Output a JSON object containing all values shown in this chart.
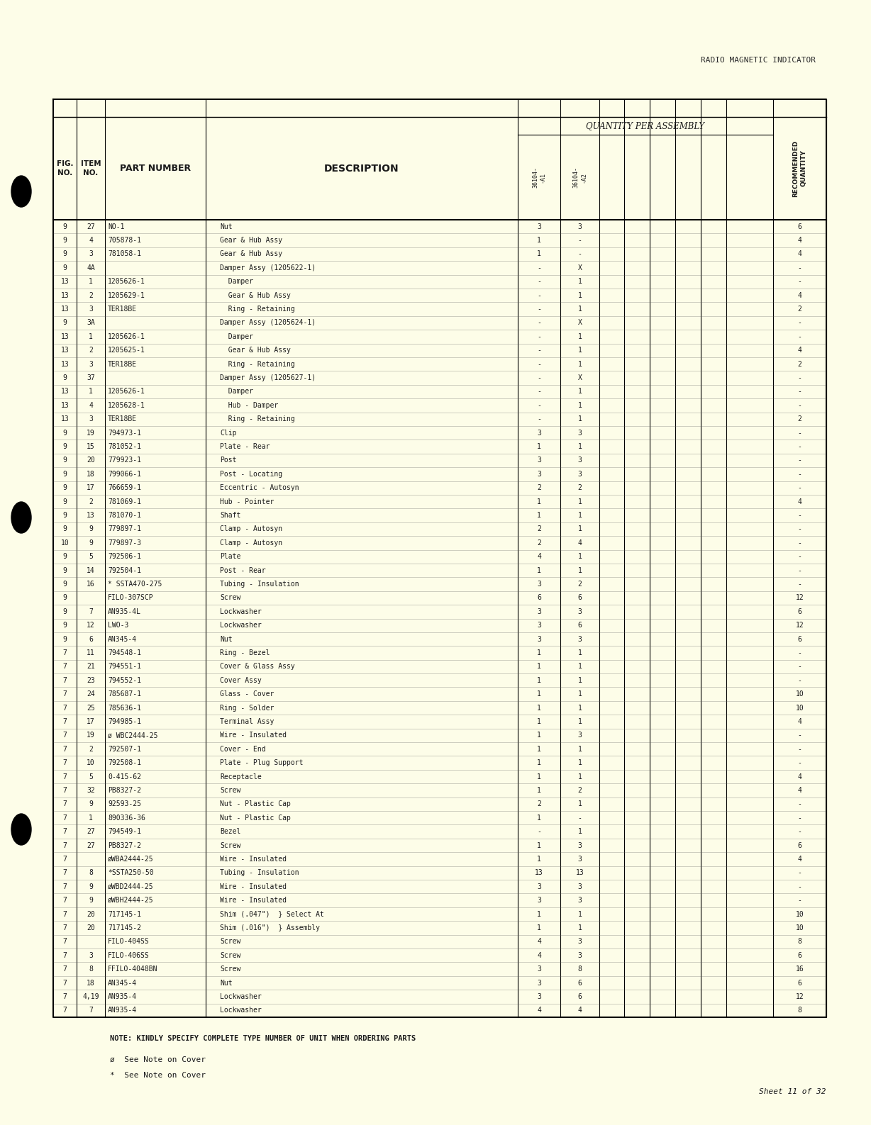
{
  "bg_color": "#fdfde8",
  "page_title": "RADIO MAGNETIC INDICATOR",
  "header_cols": [
    "FIG.\nNO.",
    "ITEM\nNO.",
    "PART NUMBER",
    "DESCRIPTION",
    "36104-\n  -A1",
    "36104-\n  -A2",
    "",
    "",
    "",
    "",
    "",
    "RECOMMENDED\nQUANTITY"
  ],
  "col_header_qty": "QUANTITY PER ASSEMBLY",
  "rows": [
    [
      "9",
      "27",
      "NO-1",
      "Nut",
      "3",
      "3",
      "",
      "",
      "",
      "",
      "",
      "6"
    ],
    [
      "9",
      "4",
      "705878-1",
      "Gear & Hub Assy",
      "1",
      "-",
      "",
      "",
      "",
      "",
      "",
      "4"
    ],
    [
      "9",
      "3",
      "781058-1",
      "Gear & Hub Assy",
      "1",
      "-",
      "",
      "",
      "",
      "",
      "",
      "4"
    ],
    [
      "9",
      "4A",
      "",
      "Damper Assy (1205622-1)",
      "-",
      "X",
      "",
      "",
      "",
      "",
      "",
      "-"
    ],
    [
      "13",
      "1",
      "1205626-1",
      "  Damper",
      "-",
      "1",
      "",
      "",
      "",
      "",
      "",
      "-"
    ],
    [
      "13",
      "2",
      "1205629-1",
      "  Gear & Hub Assy",
      "-",
      "1",
      "",
      "",
      "",
      "",
      "",
      "4"
    ],
    [
      "13",
      "3",
      "TER18BE",
      "  Ring - Retaining",
      "-",
      "1",
      "",
      "",
      "",
      "",
      "",
      "2"
    ],
    [
      "9",
      "3A",
      "",
      "Damper Assy (1205624-1)",
      "-",
      "X",
      "",
      "",
      "",
      "",
      "",
      "-"
    ],
    [
      "13",
      "1",
      "1205626-1",
      "  Damper",
      "-",
      "1",
      "",
      "",
      "",
      "",
      "",
      "-"
    ],
    [
      "13",
      "2",
      "1205625-1",
      "  Gear & Hub Assy",
      "-",
      "1",
      "",
      "",
      "",
      "",
      "",
      "4"
    ],
    [
      "13",
      "3",
      "TER18BE",
      "  Ring - Retaining",
      "-",
      "1",
      "",
      "",
      "",
      "",
      "",
      "2"
    ],
    [
      "9",
      "37",
      "",
      "Damper Assy (1205627-1)",
      "-",
      "X",
      "",
      "",
      "",
      "",
      "",
      "-"
    ],
    [
      "13",
      "1",
      "1205626-1",
      "  Damper",
      "-",
      "1",
      "",
      "",
      "",
      "",
      "",
      "-"
    ],
    [
      "13",
      "4",
      "1205628-1",
      "  Hub - Damper",
      "-",
      "1",
      "",
      "",
      "",
      "",
      "",
      "-"
    ],
    [
      "13",
      "3",
      "TER18BE",
      "  Ring - Retaining",
      "-",
      "1",
      "",
      "",
      "",
      "",
      "",
      "2"
    ],
    [
      "9",
      "19",
      "794973-1",
      "Clip",
      "3",
      "3",
      "",
      "",
      "",
      "",
      "",
      "-"
    ],
    [
      "9",
      "15",
      "781052-1",
      "Plate - Rear",
      "1",
      "1",
      "",
      "",
      "",
      "",
      "",
      "-"
    ],
    [
      "9",
      "20",
      "779923-1",
      "Post",
      "3",
      "3",
      "",
      "",
      "",
      "",
      "",
      "-"
    ],
    [
      "9",
      "18",
      "799066-1",
      "Post - Locating",
      "3",
      "3",
      "",
      "",
      "",
      "",
      "",
      "-"
    ],
    [
      "9",
      "17",
      "766659-1",
      "Eccentric - Autosyn",
      "2",
      "2",
      "",
      "",
      "",
      "",
      "",
      "-"
    ],
    [
      "9",
      "2",
      "781069-1",
      "Hub - Pointer",
      "1",
      "1",
      "",
      "",
      "",
      "",
      "",
      "4"
    ],
    [
      "9",
      "13",
      "781070-1",
      "Shaft",
      "1",
      "1",
      "",
      "",
      "",
      "",
      "",
      "-"
    ],
    [
      "9",
      "9",
      "779897-1",
      "Clamp - Autosyn",
      "2",
      "1",
      "",
      "",
      "",
      "",
      "",
      "-"
    ],
    [
      "10",
      "9",
      "779897-3",
      "Clamp - Autosyn",
      "2",
      "4",
      "",
      "",
      "",
      "",
      "",
      "-"
    ],
    [
      "9",
      "5",
      "792506-1",
      "Plate",
      "4",
      "1",
      "",
      "",
      "",
      "",
      "",
      "-"
    ],
    [
      "9",
      "14",
      "792504-1",
      "Post - Rear",
      "1",
      "1",
      "",
      "",
      "",
      "",
      "",
      "-"
    ],
    [
      "9",
      "16",
      "* SSTA470-275",
      "Tubing - Insulation",
      "3",
      "2",
      "",
      "",
      "",
      "",
      "",
      "-"
    ],
    [
      "9",
      "",
      "FILO-307SCP",
      "Screw",
      "6",
      "6",
      "",
      "",
      "",
      "",
      "",
      "12"
    ],
    [
      "9",
      "7",
      "AN935-4L",
      "Lockwasher",
      "3",
      "3",
      "",
      "",
      "",
      "",
      "",
      "6"
    ],
    [
      "9",
      "12",
      "LWO-3",
      "Lockwasher",
      "3",
      "6",
      "",
      "",
      "",
      "",
      "",
      "12"
    ],
    [
      "9",
      "6",
      "AN345-4",
      "Nut",
      "3",
      "3",
      "",
      "",
      "",
      "",
      "",
      "6"
    ],
    [
      "7",
      "11",
      "794548-1",
      "Ring - Bezel",
      "1",
      "1",
      "",
      "",
      "",
      "",
      "",
      "-"
    ],
    [
      "7",
      "21",
      "794551-1",
      "Cover & Glass Assy",
      "1",
      "1",
      "",
      "",
      "",
      "",
      "",
      "-"
    ],
    [
      "7",
      "23",
      "794552-1",
      "Cover Assy",
      "1",
      "1",
      "",
      "",
      "",
      "",
      "",
      "-"
    ],
    [
      "7",
      "24",
      "785687-1",
      "Glass - Cover",
      "1",
      "1",
      "",
      "",
      "",
      "",
      "",
      "10"
    ],
    [
      "7",
      "25",
      "785636-1",
      "Ring - Solder",
      "1",
      "1",
      "",
      "",
      "",
      "",
      "",
      "10"
    ],
    [
      "7",
      "17",
      "794985-1",
      "Terminal Assy",
      "1",
      "1",
      "",
      "",
      "",
      "",
      "",
      "4"
    ],
    [
      "7",
      "19",
      "ø WBC2444-25",
      "Wire - Insulated",
      "1",
      "3",
      "",
      "",
      "",
      "",
      "",
      "-"
    ],
    [
      "7",
      "2",
      "792507-1",
      "Cover - End",
      "1",
      "1",
      "",
      "",
      "",
      "",
      "",
      "-"
    ],
    [
      "7",
      "10",
      "792508-1",
      "Plate - Plug Support",
      "1",
      "1",
      "",
      "",
      "",
      "",
      "",
      "-"
    ],
    [
      "7",
      "5",
      "0-415-62",
      "Receptacle",
      "1",
      "1",
      "",
      "",
      "",
      "",
      "",
      "4"
    ],
    [
      "7",
      "32",
      "PB8327-2",
      "Screw",
      "1",
      "2",
      "",
      "",
      "",
      "",
      "",
      "4"
    ],
    [
      "7",
      "9",
      "92593-25",
      "Nut - Plastic Cap",
      "2",
      "1",
      "",
      "",
      "",
      "",
      "",
      "-"
    ],
    [
      "7",
      "1",
      "890336-36",
      "Nut - Plastic Cap",
      "1",
      "-",
      "",
      "",
      "",
      "",
      "",
      "-"
    ],
    [
      "7",
      "27",
      "794549-1",
      "Bezel",
      "-",
      "1",
      "",
      "",
      "",
      "",
      "",
      "-"
    ],
    [
      "7",
      "27",
      "PB8327-2",
      "Screw",
      "1",
      "3",
      "",
      "",
      "",
      "",
      "",
      "6"
    ],
    [
      "7",
      "",
      "øWBA2444-25",
      "Wire - Insulated",
      "1",
      "3",
      "",
      "",
      "",
      "",
      "",
      "4"
    ],
    [
      "7",
      "8",
      "*SSTA250-50",
      "Tubing - Insulation",
      "13",
      "13",
      "",
      "",
      "",
      "",
      "",
      "-"
    ],
    [
      "7",
      "9",
      "øWBD2444-25",
      "Wire - Insulated",
      "3",
      "3",
      "",
      "",
      "",
      "",
      "",
      "-"
    ],
    [
      "7",
      "9",
      "øWBH2444-25",
      "Wire - Insulated",
      "3",
      "3",
      "",
      "",
      "",
      "",
      "",
      "-"
    ],
    [
      "7",
      "20",
      "717145-1",
      "Shim (.047\")  } Select At",
      "1",
      "1",
      "",
      "",
      "",
      "",
      "",
      "10"
    ],
    [
      "7",
      "20",
      "717145-2",
      "Shim (.016\")  } Assembly",
      "1",
      "1",
      "",
      "",
      "",
      "",
      "",
      "10"
    ],
    [
      "7",
      "",
      "FILO-404SS",
      "Screw",
      "4",
      "3",
      "",
      "",
      "",
      "",
      "",
      "8"
    ],
    [
      "7",
      "3",
      "FILO-406SS",
      "Screw",
      "4",
      "3",
      "",
      "",
      "",
      "",
      "",
      "6"
    ],
    [
      "7",
      "8",
      "FFILO-4048BN",
      "Screw",
      "3",
      "8",
      "",
      "",
      "",
      "",
      "",
      "16"
    ],
    [
      "7",
      "18",
      "AN345-4",
      "Nut",
      "3",
      "6",
      "",
      "",
      "",
      "",
      "",
      "6"
    ],
    [
      "7",
      "4,19",
      "AN935-4",
      "Lockwasher",
      "3",
      "6",
      "",
      "",
      "",
      "",
      "",
      "12"
    ],
    [
      "7",
      "7",
      "AN935-4",
      "Lockwasher",
      "4",
      "4",
      "",
      "",
      "",
      "",
      "",
      "8"
    ]
  ],
  "note_text": "NOTE: KINDLY SPECIFY COMPLETE TYPE NUMBER OF UNIT WHEN ORDERING PARTS",
  "footnotes": [
    "ø  See Note on Cover",
    "*  See Note on Cover"
  ],
  "sheet_text": "Sheet 11 of 32"
}
